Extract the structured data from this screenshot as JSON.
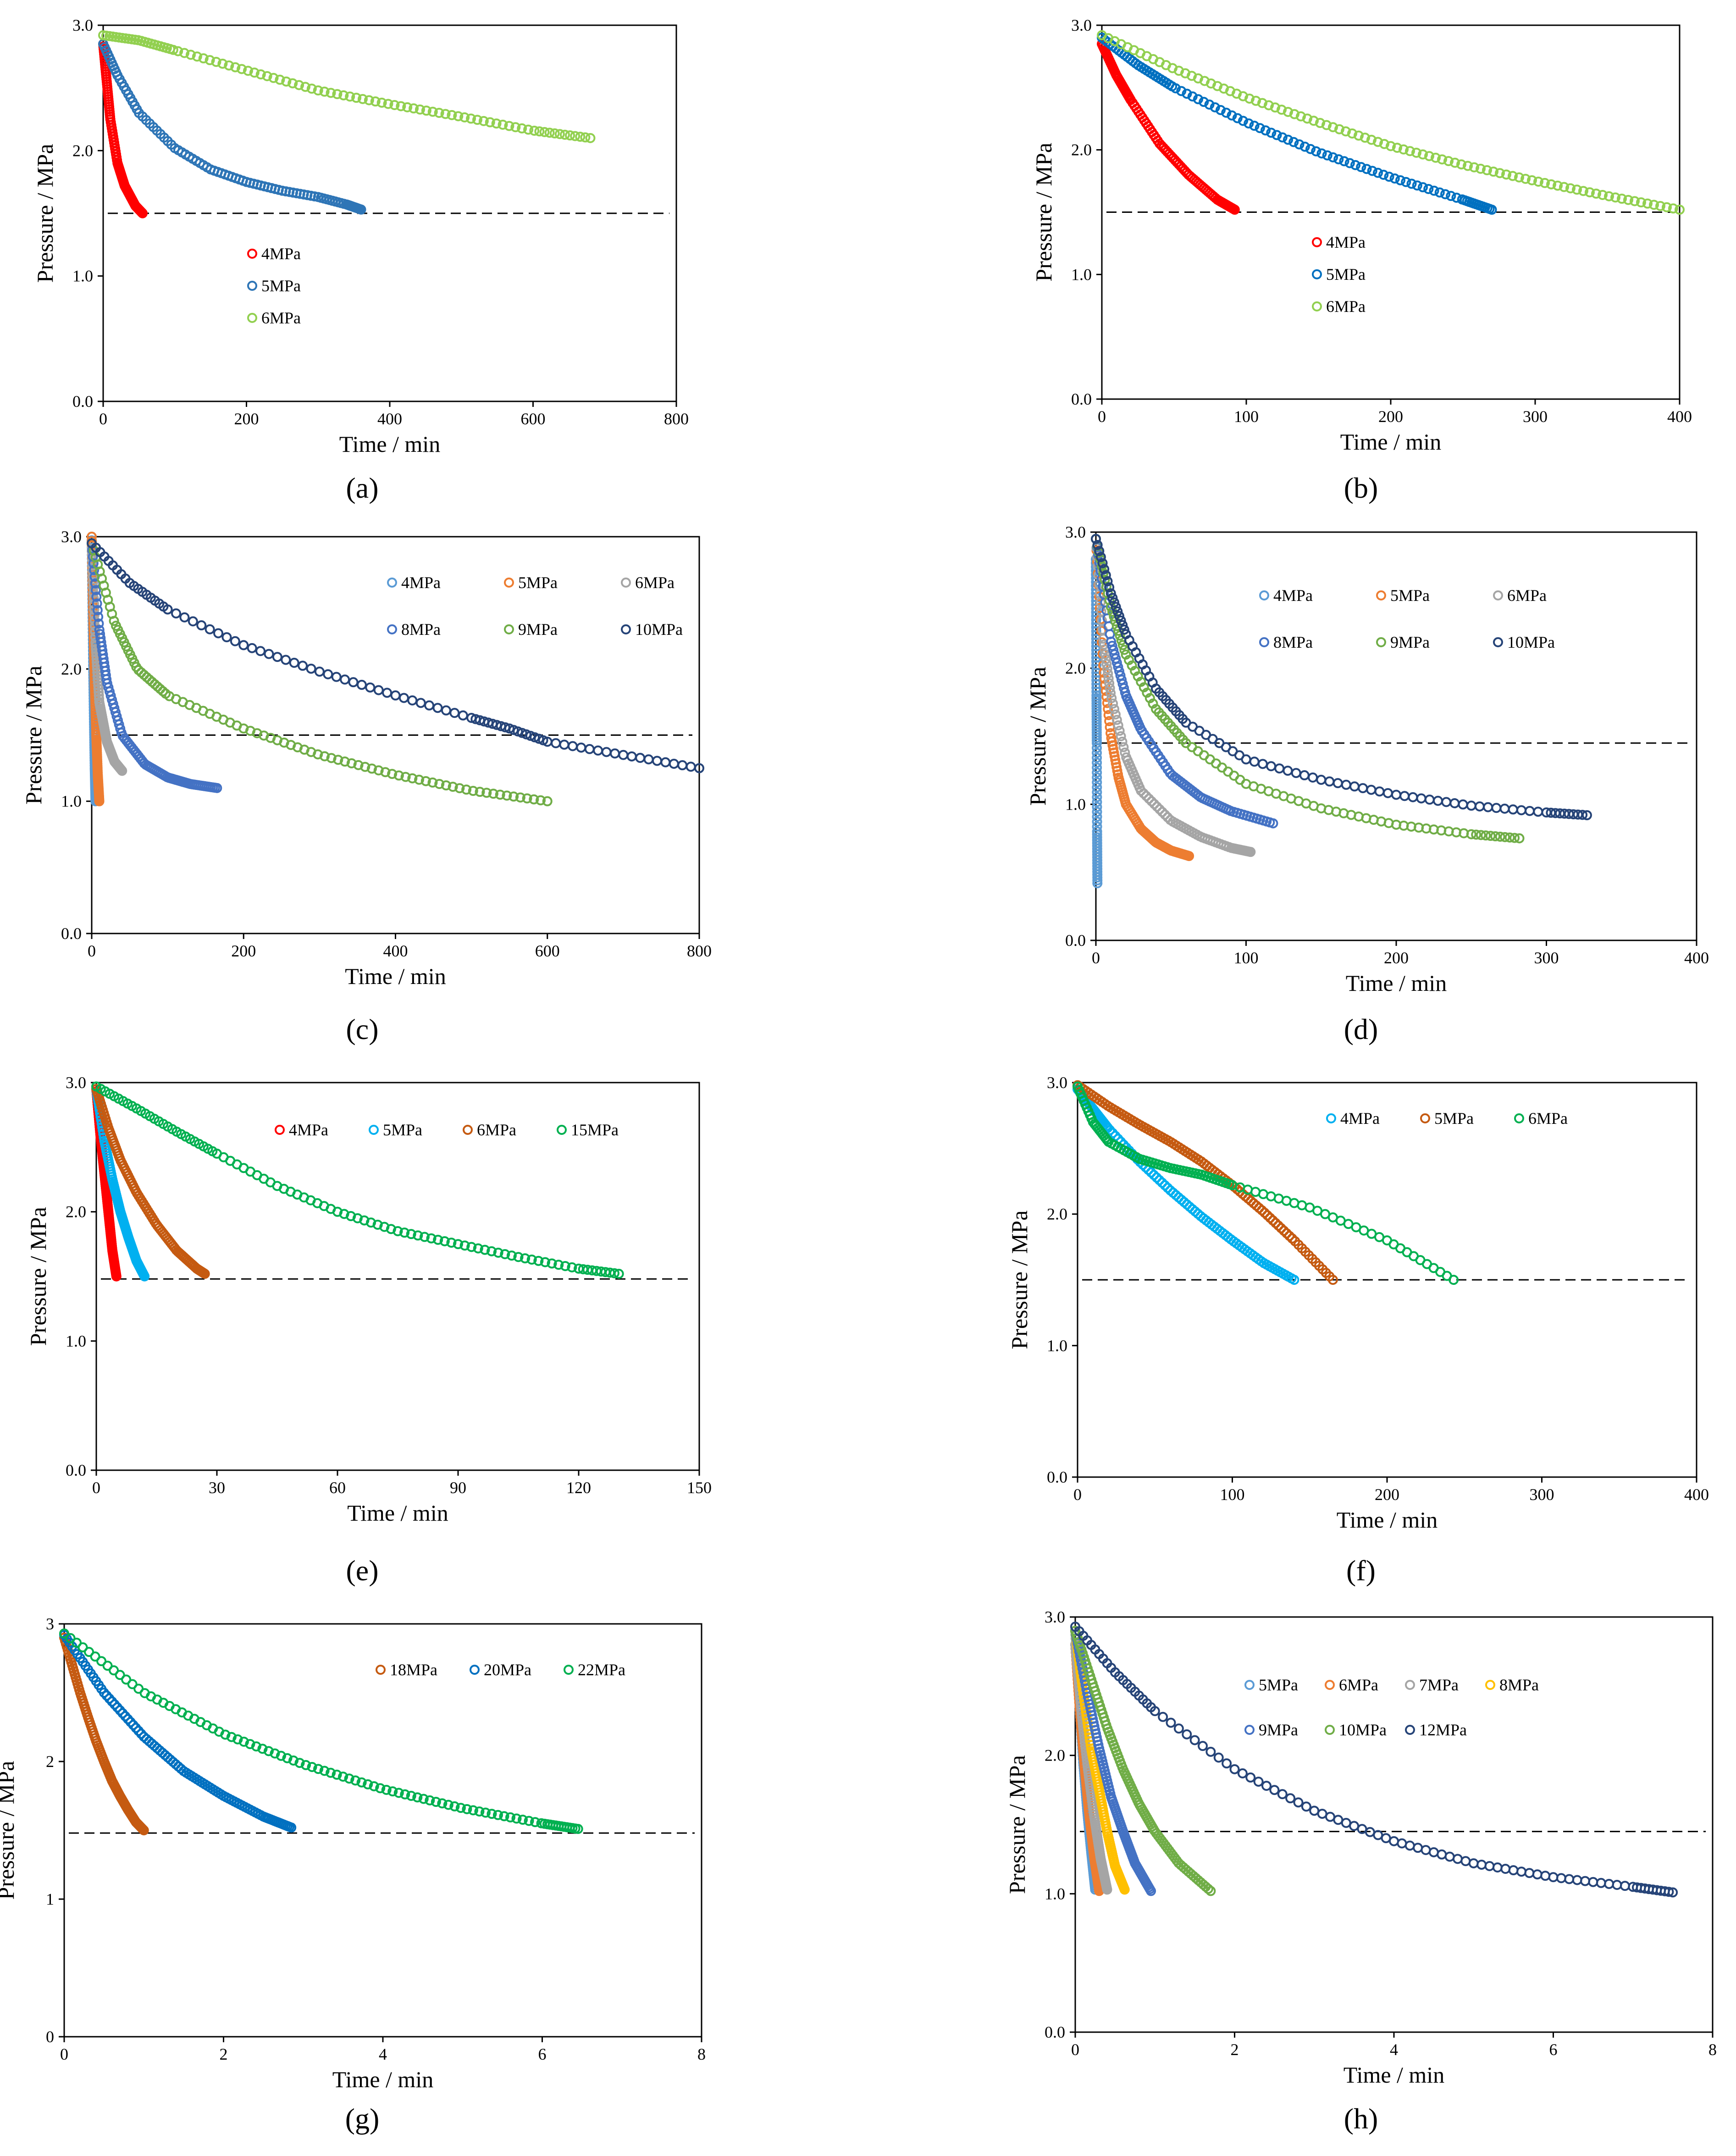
{
  "chart_data": [
    {
      "panel": "a",
      "type": "scatter",
      "xlabel": "Time / min",
      "ylabel": "Pressure / MPa",
      "xlim": [
        0,
        800
      ],
      "ylim": [
        0,
        3
      ],
      "xticks": [
        0,
        200,
        400,
        600,
        800
      ],
      "yticks": [
        0.0,
        1.0,
        2.0,
        3.0
      ],
      "ydecimals": 1,
      "reference_line": 1.5,
      "legend_entries": [
        "4MPa",
        "5MPa",
        "6MPa"
      ],
      "legend_layout": "column",
      "series": [
        {
          "name": "4MPa",
          "color": "#ff0000",
          "x": [
            0,
            5,
            10,
            20,
            30,
            45,
            55
          ],
          "y": [
            2.85,
            2.55,
            2.25,
            1.9,
            1.72,
            1.56,
            1.5
          ]
        },
        {
          "name": "5MPa",
          "color": "#2e75b6",
          "x": [
            0,
            20,
            50,
            100,
            150,
            200,
            250,
            300,
            340,
            360
          ],
          "y": [
            2.85,
            2.6,
            2.3,
            2.02,
            1.85,
            1.75,
            1.68,
            1.63,
            1.57,
            1.53
          ]
        },
        {
          "name": "6MPa",
          "color": "#92d050",
          "x": [
            0,
            50,
            100,
            200,
            300,
            400,
            500,
            600,
            680
          ],
          "y": [
            2.92,
            2.88,
            2.8,
            2.64,
            2.48,
            2.37,
            2.27,
            2.16,
            2.1
          ]
        }
      ]
    },
    {
      "panel": "b",
      "type": "scatter",
      "xlabel": "Time / min",
      "ylabel": "Pressure / MPa",
      "xlim": [
        0,
        400
      ],
      "ylim": [
        0,
        3
      ],
      "xticks": [
        0,
        100,
        200,
        300,
        400
      ],
      "yticks": [
        0.0,
        1.0,
        2.0,
        3.0
      ],
      "ydecimals": 1,
      "reference_line": 1.5,
      "legend_entries": [
        "4MPa",
        "5MPa",
        "6MPa"
      ],
      "legend_layout": "column",
      "series": [
        {
          "name": "4MPa",
          "color": "#ff0000",
          "x": [
            0,
            10,
            20,
            40,
            60,
            80,
            92
          ],
          "y": [
            2.85,
            2.6,
            2.4,
            2.05,
            1.8,
            1.6,
            1.52
          ]
        },
        {
          "name": "5MPa",
          "color": "#0070c0",
          "x": [
            0,
            25,
            50,
            100,
            150,
            200,
            250,
            270
          ],
          "y": [
            2.9,
            2.68,
            2.5,
            2.22,
            1.98,
            1.78,
            1.6,
            1.52
          ]
        },
        {
          "name": "6MPa",
          "color": "#92d050",
          "x": [
            0,
            50,
            100,
            150,
            200,
            250,
            300,
            350,
            400
          ],
          "y": [
            2.92,
            2.65,
            2.42,
            2.22,
            2.03,
            1.88,
            1.75,
            1.63,
            1.52
          ]
        }
      ]
    },
    {
      "panel": "c",
      "type": "scatter",
      "xlabel": "Time / min",
      "ylabel": "Pressure / MPa",
      "xlim": [
        0,
        800
      ],
      "ylim": [
        0,
        3
      ],
      "xticks": [
        0,
        200,
        400,
        600,
        800
      ],
      "yticks": [
        0.0,
        1.0,
        2.0,
        3.0
      ],
      "ydecimals": 1,
      "reference_line": 1.5,
      "legend_entries": [
        "4MPa",
        "5MPa",
        "6MPa",
        "8MPa",
        "9MPa",
        "10MPa"
      ],
      "legend_layout": "grid",
      "series": [
        {
          "name": "4MPa",
          "color": "#5b9bd5",
          "x": [
            0,
            1,
            2,
            3,
            4,
            5
          ],
          "y": [
            3.0,
            2.5,
            2.0,
            1.6,
            1.25,
            1.0
          ]
        },
        {
          "name": "5MPa",
          "color": "#ed7d31",
          "x": [
            0,
            2,
            4,
            6,
            8,
            10
          ],
          "y": [
            3.0,
            2.4,
            1.9,
            1.5,
            1.2,
            1.0
          ]
        },
        {
          "name": "6MPa",
          "color": "#a5a5a5",
          "x": [
            0,
            5,
            10,
            20,
            30,
            40
          ],
          "y": [
            2.95,
            2.2,
            1.75,
            1.45,
            1.3,
            1.23
          ]
        },
        {
          "name": "8MPa",
          "color": "#4472c4",
          "x": [
            0,
            10,
            20,
            40,
            70,
            100,
            130,
            165
          ],
          "y": [
            2.95,
            2.3,
            1.9,
            1.5,
            1.28,
            1.18,
            1.13,
            1.1
          ]
        },
        {
          "name": "9MPa",
          "color": "#70ad47",
          "x": [
            0,
            30,
            60,
            100,
            200,
            300,
            400,
            500,
            600
          ],
          "y": [
            2.95,
            2.35,
            2.0,
            1.8,
            1.55,
            1.35,
            1.2,
            1.08,
            1.0
          ]
        },
        {
          "name": "10MPa",
          "color": "#264478",
          "x": [
            0,
            50,
            100,
            200,
            300,
            400,
            500,
            550,
            600,
            700,
            800
          ],
          "y": [
            2.95,
            2.65,
            2.45,
            2.18,
            1.98,
            1.8,
            1.63,
            1.55,
            1.45,
            1.35,
            1.25
          ]
        }
      ]
    },
    {
      "panel": "d",
      "type": "scatter",
      "xlabel": "Time / min",
      "ylabel": "Pressure / MPa",
      "xlim": [
        0,
        400
      ],
      "ylim": [
        0,
        3
      ],
      "xticks": [
        0,
        100,
        200,
        300,
        400
      ],
      "yticks": [
        0.0,
        1.0,
        2.0,
        3.0
      ],
      "ydecimals": 1,
      "reference_line": 1.45,
      "legend_entries": [
        "4MPa",
        "5MPa",
        "6MPa",
        "8MPa",
        "9MPa",
        "10MPa"
      ],
      "legend_layout": "grid",
      "series": [
        {
          "name": "4MPa",
          "color": "#5b9bd5",
          "x": [
            0,
            0.2,
            0.4,
            0.6,
            0.8,
            1.0
          ],
          "y": [
            2.8,
            2.3,
            1.8,
            1.45,
            0.8,
            0.42
          ]
        },
        {
          "name": "5MPa",
          "color": "#ed7d31",
          "x": [
            0,
            5,
            10,
            15,
            20,
            30,
            40,
            50,
            62
          ],
          "y": [
            2.95,
            2.0,
            1.5,
            1.2,
            1.0,
            0.82,
            0.72,
            0.66,
            0.62
          ]
        },
        {
          "name": "6MPa",
          "color": "#a5a5a5",
          "x": [
            0,
            5,
            10,
            20,
            30,
            50,
            70,
            90,
            103
          ],
          "y": [
            2.95,
            2.2,
            1.8,
            1.35,
            1.1,
            0.88,
            0.76,
            0.68,
            0.65
          ]
        },
        {
          "name": "8MPa",
          "color": "#4472c4",
          "x": [
            0,
            10,
            20,
            30,
            50,
            70,
            90,
            118
          ],
          "y": [
            2.95,
            2.2,
            1.8,
            1.55,
            1.22,
            1.05,
            0.95,
            0.86
          ]
        },
        {
          "name": "9MPa",
          "color": "#70ad47",
          "x": [
            0,
            10,
            20,
            40,
            60,
            100,
            150,
            200,
            250,
            282
          ],
          "y": [
            2.95,
            2.45,
            2.1,
            1.7,
            1.45,
            1.15,
            0.97,
            0.85,
            0.78,
            0.75
          ]
        },
        {
          "name": "10MPa",
          "color": "#264478",
          "x": [
            0,
            10,
            20,
            40,
            60,
            100,
            150,
            200,
            250,
            300,
            327
          ],
          "y": [
            2.95,
            2.55,
            2.25,
            1.85,
            1.6,
            1.33,
            1.18,
            1.07,
            0.99,
            0.94,
            0.92
          ]
        }
      ]
    },
    {
      "panel": "e",
      "type": "scatter",
      "xlabel": "Time / min",
      "ylabel": "Pressure / MPa",
      "xlim": [
        0,
        150
      ],
      "ylim": [
        0,
        3
      ],
      "xticks": [
        0,
        30,
        60,
        90,
        120,
        150
      ],
      "yticks": [
        0.0,
        1.0,
        2.0,
        3.0
      ],
      "ydecimals": 1,
      "reference_line": 1.48,
      "legend_entries": [
        "4MPa",
        "5MPa",
        "6MPa",
        "15MPa"
      ],
      "legend_layout": "row",
      "series": [
        {
          "name": "4MPa",
          "color": "#ff0000",
          "x": [
            0,
            1,
            2,
            3,
            4,
            5
          ],
          "y": [
            2.95,
            2.6,
            2.3,
            2.0,
            1.7,
            1.5
          ]
        },
        {
          "name": "5MPa",
          "color": "#00b0f0",
          "x": [
            0,
            2,
            4,
            6,
            8,
            10,
            12
          ],
          "y": [
            2.95,
            2.55,
            2.25,
            2.0,
            1.8,
            1.62,
            1.5
          ]
        },
        {
          "name": "6MPa",
          "color": "#c55a11",
          "x": [
            0,
            3,
            6,
            10,
            15,
            20,
            25,
            27
          ],
          "y": [
            2.95,
            2.65,
            2.4,
            2.15,
            1.9,
            1.7,
            1.56,
            1.52
          ]
        },
        {
          "name": "15MPa",
          "color": "#00b050",
          "x": [
            0,
            10,
            20,
            30,
            45,
            60,
            75,
            90,
            105,
            120,
            130
          ],
          "y": [
            2.97,
            2.8,
            2.62,
            2.45,
            2.2,
            2.0,
            1.85,
            1.75,
            1.65,
            1.56,
            1.52
          ]
        }
      ]
    },
    {
      "panel": "f",
      "type": "scatter",
      "xlabel": "Time / min",
      "ylabel": "Pressure / MPa",
      "xlim": [
        0,
        400
      ],
      "ylim": [
        0,
        3
      ],
      "xticks": [
        0,
        100,
        200,
        300,
        400
      ],
      "yticks": [
        0.0,
        1.0,
        2.0,
        3.0
      ],
      "ydecimals": 1,
      "reference_line": 1.5,
      "legend_entries": [
        "4MPa",
        "5MPa",
        "6MPa"
      ],
      "legend_layout": "row",
      "series": [
        {
          "name": "4MPa",
          "color": "#00b0f0",
          "x": [
            0,
            10,
            20,
            40,
            60,
            80,
            100,
            120,
            140
          ],
          "y": [
            2.95,
            2.8,
            2.65,
            2.4,
            2.18,
            1.98,
            1.8,
            1.63,
            1.5
          ]
        },
        {
          "name": "5MPa",
          "color": "#c55a11",
          "x": [
            0,
            20,
            40,
            60,
            80,
            100,
            120,
            140,
            165
          ],
          "y": [
            2.98,
            2.82,
            2.68,
            2.55,
            2.4,
            2.22,
            2.02,
            1.8,
            1.5
          ]
        },
        {
          "name": "6MPa",
          "color": "#00b050",
          "x": [
            0,
            10,
            20,
            40,
            60,
            80,
            100,
            150,
            200,
            243
          ],
          "y": [
            2.97,
            2.7,
            2.55,
            2.42,
            2.35,
            2.3,
            2.22,
            2.05,
            1.8,
            1.5
          ]
        }
      ]
    },
    {
      "panel": "g",
      "type": "scatter",
      "xlabel": "Time / min",
      "ylabel": "Pressure / MPa",
      "xlim": [
        0,
        8
      ],
      "ylim": [
        0,
        3
      ],
      "xticks": [
        0,
        2,
        4,
        6,
        8
      ],
      "yticks": [
        0,
        1,
        2,
        3
      ],
      "ydecimals": 0,
      "reference_line": 1.48,
      "legend_entries": [
        "18MPa",
        "20MPa",
        "22MPa"
      ],
      "legend_layout": "row",
      "series": [
        {
          "name": "18MPa",
          "color": "#c55a11",
          "x": [
            0,
            0.1,
            0.2,
            0.3,
            0.4,
            0.5,
            0.6,
            0.7,
            0.8,
            0.9,
            1.0
          ],
          "y": [
            2.9,
            2.7,
            2.5,
            2.32,
            2.15,
            2.0,
            1.86,
            1.75,
            1.65,
            1.56,
            1.5
          ]
        },
        {
          "name": "20MPa",
          "color": "#0070c0",
          "x": [
            0,
            0.5,
            1.0,
            1.5,
            2.0,
            2.5,
            2.85
          ],
          "y": [
            2.92,
            2.5,
            2.18,
            1.93,
            1.75,
            1.6,
            1.52
          ]
        },
        {
          "name": "22MPa",
          "color": "#00b050",
          "x": [
            0,
            1,
            2,
            3,
            4,
            5,
            6,
            6.45
          ],
          "y": [
            2.93,
            2.5,
            2.2,
            1.98,
            1.8,
            1.66,
            1.55,
            1.51
          ]
        }
      ]
    },
    {
      "panel": "h",
      "type": "scatter",
      "xlabel": "Time / min",
      "ylabel": "Pressure / MPa",
      "xlim": [
        0,
        8
      ],
      "ylim": [
        0,
        3
      ],
      "xticks": [
        0,
        2,
        4,
        6,
        8
      ],
      "yticks": [
        0.0,
        1.0,
        2.0,
        3.0
      ],
      "ydecimals": 1,
      "reference_line": 1.45,
      "legend_entries": [
        "5MPa",
        "6MPa",
        "7MPa",
        "8MPa",
        "9MPa",
        "10MPa",
        "12MPa"
      ],
      "legend_layout": "grid4",
      "series": [
        {
          "name": "5MPa",
          "color": "#5b9bd5",
          "x": [
            0,
            0.05,
            0.1,
            0.15,
            0.2,
            0.25
          ],
          "y": [
            2.9,
            2.4,
            1.95,
            1.6,
            1.3,
            1.03
          ]
        },
        {
          "name": "6MPa",
          "color": "#ed7d31",
          "x": [
            0,
            0.06,
            0.12,
            0.18,
            0.24,
            0.3
          ],
          "y": [
            2.8,
            2.3,
            1.9,
            1.55,
            1.25,
            1.02
          ]
        },
        {
          "name": "7MPa",
          "color": "#a5a5a5",
          "x": [
            0,
            0.08,
            0.16,
            0.24,
            0.32,
            0.4
          ],
          "y": [
            2.8,
            2.3,
            1.9,
            1.55,
            1.25,
            1.03
          ]
        },
        {
          "name": "8MPa",
          "color": "#ffc000",
          "x": [
            0,
            0.1,
            0.2,
            0.3,
            0.4,
            0.5,
            0.62
          ],
          "y": [
            2.9,
            2.45,
            2.05,
            1.75,
            1.45,
            1.2,
            1.03
          ]
        },
        {
          "name": "9MPa",
          "color": "#4472c4",
          "x": [
            0,
            0.15,
            0.3,
            0.45,
            0.6,
            0.75,
            0.95
          ],
          "y": [
            2.9,
            2.45,
            2.05,
            1.7,
            1.45,
            1.22,
            1.02
          ]
        },
        {
          "name": "10MPa",
          "color": "#70ad47",
          "x": [
            0,
            0.2,
            0.4,
            0.6,
            0.8,
            1.0,
            1.3,
            1.7
          ],
          "y": [
            2.9,
            2.55,
            2.2,
            1.9,
            1.65,
            1.45,
            1.22,
            1.02
          ]
        },
        {
          "name": "12MPa",
          "color": "#264478",
          "x": [
            0,
            0.5,
            1,
            2,
            3,
            4,
            5,
            6,
            7,
            7.5
          ],
          "y": [
            2.93,
            2.6,
            2.32,
            1.9,
            1.6,
            1.38,
            1.22,
            1.12,
            1.05,
            1.01
          ]
        }
      ]
    }
  ]
}
